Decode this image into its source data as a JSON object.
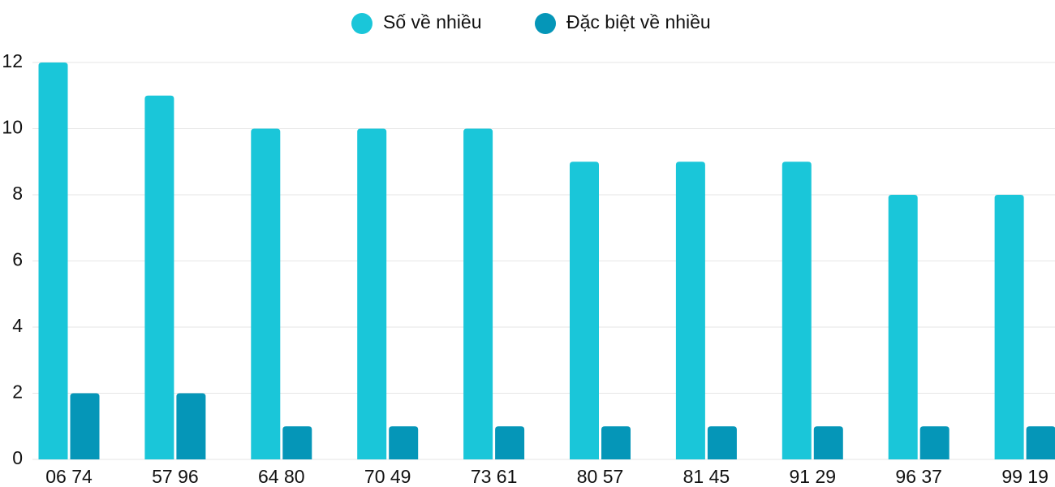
{
  "chart_data": {
    "type": "bar",
    "categories": [
      "06 74",
      "57 96",
      "64 80",
      "70 49",
      "73 61",
      "80 57",
      "81 45",
      "91 29",
      "96 37",
      "99 19"
    ],
    "series": [
      {
        "name": "Số về nhiều",
        "color": "#1ac6d9",
        "values": [
          12,
          11,
          10,
          10,
          10,
          9,
          9,
          9,
          8,
          8
        ]
      },
      {
        "name": "Đặc biệt về nhiều",
        "color": "#0596b8",
        "values": [
          2,
          2,
          1,
          1,
          1,
          1,
          1,
          1,
          1,
          1
        ]
      }
    ],
    "ylim": [
      0,
      12
    ],
    "yticks": [
      0,
      2,
      4,
      6,
      8,
      10,
      12
    ],
    "grid": true,
    "legend": "top"
  }
}
